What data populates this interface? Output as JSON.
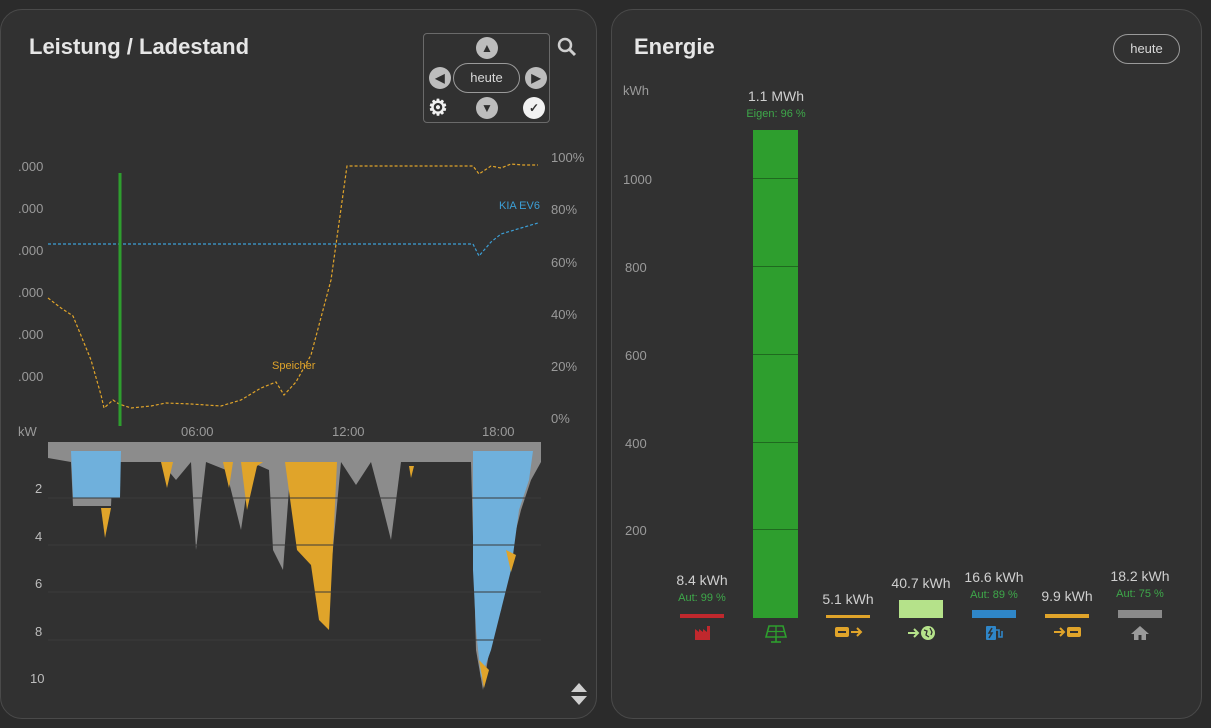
{
  "left_card": {
    "title": "Leistung / Ladestand",
    "nav": {
      "date_label": "heute",
      "up_icon": "chevron-up-icon",
      "down_icon": "chevron-down-icon",
      "prev_icon": "chevron-left-icon",
      "next_icon": "chevron-right-icon",
      "settings_icon": "gear-icon",
      "confirm_icon": "check-icon"
    },
    "zoom_icon": "search-icon",
    "scroll_icon": "scroll-updown-icon",
    "soc_axis": [
      "100%",
      "80%",
      "60%",
      "40%",
      "20%",
      "0%"
    ],
    "power_top_ticks": [
      ".000",
      ".000",
      ".000",
      ".000",
      ".000",
      ".000"
    ],
    "time_ticks": [
      "06:00",
      "12:00",
      "18:00"
    ],
    "kw_unit": "kW",
    "kw_ticks": [
      "2",
      "4",
      "6",
      "8",
      "10"
    ],
    "series_labels": {
      "battery": "Speicher",
      "car": "KIA EV6"
    }
  },
  "right_card": {
    "title": "Energie",
    "date_button": "heute",
    "unit": "kWh",
    "y_ticks": [
      "1000",
      "800",
      "600",
      "400",
      "200"
    ],
    "bars": [
      {
        "value": "8.4 kWh",
        "sub": "Aut: 99 %",
        "icon": "factory-icon",
        "color": "#c0282d"
      },
      {
        "value": "1.1 MWh",
        "sub": "Eigen: 96 %",
        "icon": "solar-panel-icon",
        "color": "#2e9e2e"
      },
      {
        "value": "5.1 kWh",
        "sub": "",
        "icon": "battery-discharge-icon",
        "color": "#e0a42a"
      },
      {
        "value": "40.7 kWh",
        "sub": "",
        "icon": "grid-export-icon",
        "color": "#b5e28a"
      },
      {
        "value": "16.6 kWh",
        "sub": "Aut: 89 %",
        "icon": "ev-charger-icon",
        "color": "#2f86c8"
      },
      {
        "value": "9.9 kWh",
        "sub": "",
        "icon": "battery-charge-icon",
        "color": "#e0a42a"
      },
      {
        "value": "18.2 kWh",
        "sub": "Aut: 75 %",
        "icon": "house-icon",
        "color": "#8a8a8a"
      }
    ]
  },
  "chart_data": [
    {
      "type": "line",
      "x": [
        "00:00",
        "01:00",
        "02:00",
        "03:00",
        "04:00",
        "05:00",
        "06:00",
        "07:00",
        "08:00",
        "09:00",
        "10:00",
        "11:00",
        "12:00",
        "13:00",
        "14:00",
        "15:00",
        "16:00",
        "17:00",
        "18:00",
        "19:00",
        "20:00"
      ],
      "series": [
        {
          "name": "Speicher",
          "values": [
            50,
            43,
            30,
            8,
            8,
            8,
            8,
            8,
            8,
            12,
            14,
            28,
            72,
            100,
            100,
            100,
            100,
            100,
            97,
            100,
            100
          ]
        },
        {
          "name": "KIA EV6",
          "values": [
            70,
            70,
            70,
            70,
            70,
            70,
            70,
            70,
            70,
            70,
            70,
            70,
            70,
            70,
            70,
            70,
            70,
            70,
            65,
            76,
            80
          ]
        }
      ],
      "ylim": [
        0,
        100
      ]
    },
    {
      "type": "bar",
      "categories": [
        "8.4 kWh",
        "1.1 MWh",
        "5.1 kWh",
        "40.7 kWh",
        "16.6 kWh",
        "9.9 kWh",
        "18.2 kWh"
      ],
      "values": [
        8.4,
        1100,
        5.1,
        40.7,
        16.6,
        9.9,
        18.2
      ],
      "ylabel": "kWh",
      "ylim": [
        0,
        1100
      ]
    }
  ]
}
